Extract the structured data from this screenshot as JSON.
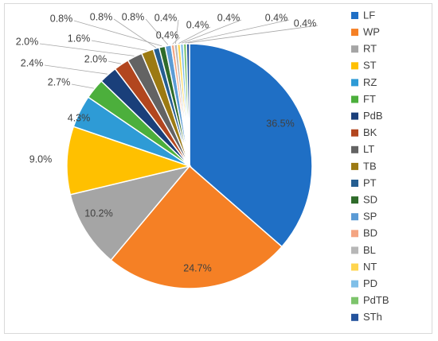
{
  "chart_data": {
    "type": "pie",
    "categories": [
      "LF",
      "WP",
      "RT",
      "ST",
      "RZ",
      "FT",
      "PdB",
      "BK",
      "LT",
      "TB",
      "PT",
      "SD",
      "SP",
      "BD",
      "BL",
      "NT",
      "PD",
      "PdTB",
      "STh"
    ],
    "values": [
      36.5,
      24.7,
      10.2,
      9.0,
      4.3,
      2.7,
      2.4,
      2.0,
      2.0,
      1.6,
      0.8,
      0.8,
      0.8,
      0.4,
      0.4,
      0.4,
      0.4,
      0.4,
      0.4
    ],
    "value_labels": [
      "36.5%",
      "24.7%",
      "10.2%",
      "9.0%",
      "4.3%",
      "2.7%",
      "2.4%",
      "2.0%",
      "2.0%",
      "1.6%",
      "0.8%",
      "0.8%",
      "0.8%",
      "0.4%",
      "0.4%",
      "0.4%",
      "0.4%",
      "0.4%",
      "0.4%"
    ],
    "colors": [
      "#1f6fc5",
      "#f58025",
      "#a5a5a5",
      "#ffc000",
      "#2e9bd6",
      "#4caf3c",
      "#1a3f7a",
      "#b2461f",
      "#636363",
      "#9c7a13",
      "#255e91",
      "#2f6b2a",
      "#5b9bd5",
      "#f4a582",
      "#b7b7b7",
      "#ffd54f",
      "#7fbfe8",
      "#7dc46c",
      "#24539c"
    ],
    "legend_position": "right",
    "title": ""
  }
}
